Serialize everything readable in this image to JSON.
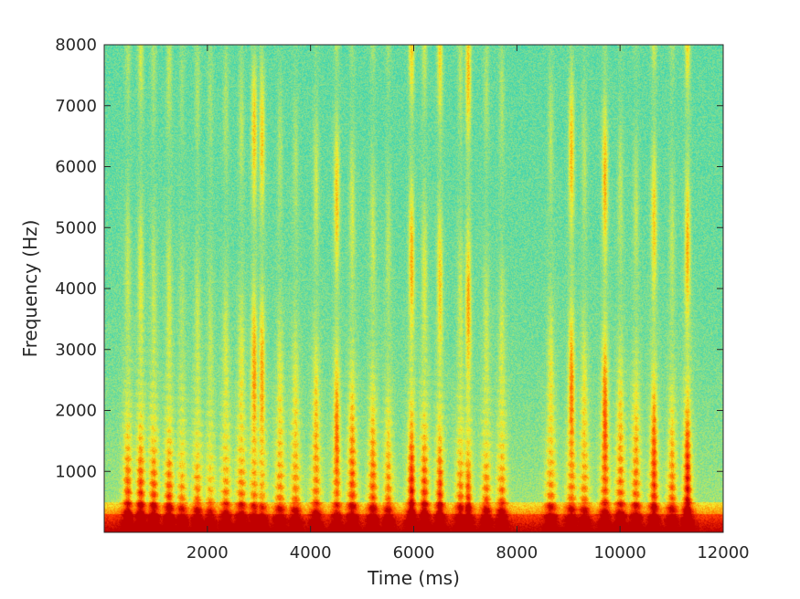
{
  "chart_data": {
    "type": "heatmap",
    "title": "",
    "xlabel": "Time (ms)",
    "ylabel": "Frequency (Hz)",
    "xlim": [
      0,
      12000
    ],
    "ylim": [
      0,
      8000
    ],
    "xticks": [
      2000,
      4000,
      6000,
      8000,
      10000,
      12000
    ],
    "yticks": [
      1000,
      2000,
      3000,
      4000,
      5000,
      6000,
      7000,
      8000
    ],
    "xtick_labels": [
      "2000",
      "4000",
      "6000",
      "8000",
      "10000",
      "12000"
    ],
    "ytick_labels": [
      "1000",
      "2000",
      "3000",
      "4000",
      "5000",
      "6000",
      "7000",
      "8000"
    ],
    "colormap": "jet",
    "colormap_stops": [
      "#00a8e0",
      "#1ccfc4",
      "#8ee08a",
      "#f2f230",
      "#ff8c00",
      "#ff3300",
      "#c00000"
    ],
    "grid": false,
    "speech_bursts_ms": [
      {
        "t": 450,
        "intensity": 0.85,
        "high": 0.35
      },
      {
        "t": 700,
        "intensity": 0.9,
        "high": 0.5
      },
      {
        "t": 950,
        "intensity": 0.95,
        "high": 0.3
      },
      {
        "t": 1250,
        "intensity": 0.9,
        "high": 0.4
      },
      {
        "t": 1500,
        "intensity": 0.7,
        "high": 0.2
      },
      {
        "t": 1800,
        "intensity": 0.75,
        "high": 0.3
      },
      {
        "t": 2050,
        "intensity": 0.6,
        "high": 0.25
      },
      {
        "t": 2350,
        "intensity": 0.8,
        "high": 0.3
      },
      {
        "t": 2650,
        "intensity": 0.9,
        "high": 0.35
      },
      {
        "t": 2900,
        "intensity": 0.7,
        "high": 0.85
      },
      {
        "t": 3050,
        "intensity": 0.6,
        "high": 0.8
      },
      {
        "t": 3400,
        "intensity": 0.85,
        "high": 0.3
      },
      {
        "t": 3700,
        "intensity": 0.85,
        "high": 0.3
      },
      {
        "t": 4100,
        "intensity": 0.8,
        "high": 0.45
      },
      {
        "t": 4500,
        "intensity": 0.6,
        "high": 0.85
      },
      {
        "t": 4800,
        "intensity": 0.95,
        "high": 0.45
      },
      {
        "t": 5200,
        "intensity": 0.85,
        "high": 0.4
      },
      {
        "t": 5500,
        "intensity": 0.7,
        "high": 0.3
      },
      {
        "t": 5950,
        "intensity": 0.75,
        "high": 0.9
      },
      {
        "t": 6200,
        "intensity": 0.9,
        "high": 0.45
      },
      {
        "t": 6500,
        "intensity": 0.7,
        "high": 0.75
      },
      {
        "t": 6900,
        "intensity": 0.75,
        "high": 0.35
      },
      {
        "t": 7050,
        "intensity": 0.6,
        "high": 0.9
      },
      {
        "t": 7400,
        "intensity": 0.8,
        "high": 0.3
      },
      {
        "t": 7700,
        "intensity": 0.85,
        "high": 0.3
      },
      {
        "t": 8650,
        "intensity": 0.85,
        "high": 0.35
      },
      {
        "t": 9050,
        "intensity": 0.8,
        "high": 0.9
      },
      {
        "t": 9300,
        "intensity": 0.8,
        "high": 0.35
      },
      {
        "t": 9700,
        "intensity": 0.85,
        "high": 0.95
      },
      {
        "t": 10000,
        "intensity": 0.9,
        "high": 0.35
      },
      {
        "t": 10300,
        "intensity": 0.85,
        "high": 0.35
      },
      {
        "t": 10650,
        "intensity": 0.8,
        "high": 0.8
      },
      {
        "t": 11000,
        "intensity": 0.75,
        "high": 0.35
      },
      {
        "t": 11300,
        "intensity": 0.9,
        "high": 0.9
      }
    ]
  }
}
